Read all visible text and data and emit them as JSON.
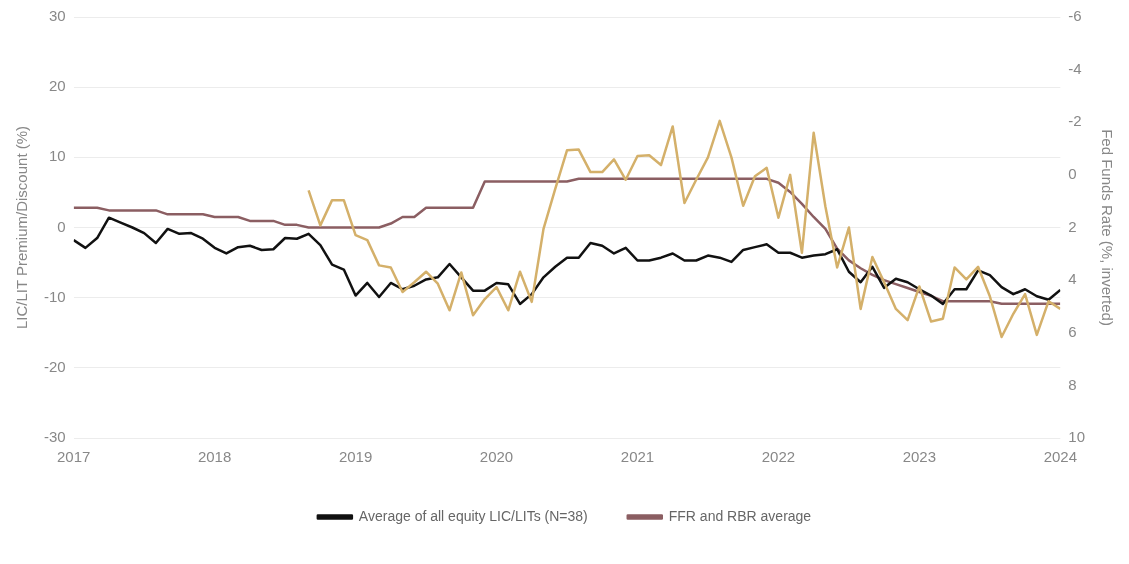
{
  "chart_data": {
    "type": "line",
    "ylabel": "LIC/LIT Premium/Discount (%)",
    "y2label": "Fed Funds Rate (%, inverted)",
    "x": [
      "2017-01",
      "2017-02",
      "2017-03",
      "2017-04",
      "2017-05",
      "2017-06",
      "2017-07",
      "2017-08",
      "2017-09",
      "2017-10",
      "2017-11",
      "2017-12",
      "2018-01",
      "2018-02",
      "2018-03",
      "2018-04",
      "2018-05",
      "2018-06",
      "2018-07",
      "2018-08",
      "2018-09",
      "2018-10",
      "2018-11",
      "2018-12",
      "2019-01",
      "2019-02",
      "2019-03",
      "2019-04",
      "2019-05",
      "2019-06",
      "2019-07",
      "2019-08",
      "2019-09",
      "2019-10",
      "2019-11",
      "2019-12",
      "2020-01",
      "2020-02",
      "2020-03",
      "2020-04",
      "2020-05",
      "2020-06",
      "2020-07",
      "2020-08",
      "2020-09",
      "2020-10",
      "2020-11",
      "2020-12",
      "2021-01",
      "2021-02",
      "2021-03",
      "2021-04",
      "2021-05",
      "2021-06",
      "2021-07",
      "2021-08",
      "2021-09",
      "2021-10",
      "2021-11",
      "2021-12",
      "2022-01",
      "2022-02",
      "2022-03",
      "2022-04",
      "2022-05",
      "2022-06",
      "2022-07",
      "2022-08",
      "2022-09",
      "2022-10",
      "2022-11",
      "2022-12",
      "2023-01",
      "2023-02",
      "2023-03",
      "2023-04",
      "2023-05",
      "2023-06",
      "2023-07",
      "2023-08",
      "2023-09",
      "2023-10",
      "2023-11",
      "2023-12",
      "2024-01"
    ],
    "series": [
      {
        "color": "#d4b06a",
        "values": [
          null,
          null,
          null,
          null,
          null,
          null,
          null,
          null,
          null,
          null,
          null,
          null,
          null,
          null,
          null,
          null,
          null,
          null,
          null,
          null,
          5.3,
          0.3,
          3.9,
          3.9,
          -1.1,
          -1.8,
          -5.4,
          -5.7,
          -9.2,
          -7.8,
          -6.3,
          -8,
          -11.8,
          -6.4,
          -12.5,
          -10.2,
          -8.5,
          -11.8,
          -6.3,
          -10.6,
          -0.2,
          5.5,
          11,
          11.1,
          7.9,
          7.9,
          9.7,
          6.8,
          10.2,
          10.3,
          8.9,
          14.4,
          3.5,
          6.8,
          10,
          15.2,
          10,
          3.1,
          7.3,
          8.5,
          1.4,
          7.5,
          -3.6,
          13.5,
          3,
          -5.7,
          0,
          -11.6,
          -4.2,
          -7.8,
          -11.6,
          -13.2,
          -8.4,
          -13.4,
          -13,
          -5.7,
          -7.4,
          -5.6,
          -9.8,
          -15.6,
          -12.3,
          -9.5,
          -15.3,
          -10.5,
          -11.6
        ]
      },
      {
        "name": "Average of all equity LIC/LITs (N=38)",
        "color": "#111111",
        "values": [
          -1.8,
          -2.9,
          -1.5,
          1.4,
          0.7,
          0,
          -0.8,
          -2.2,
          -0.2,
          -0.9,
          -0.8,
          -1.6,
          -2.9,
          -3.7,
          -2.8,
          -2.6,
          -3.2,
          -3.1,
          -1.5,
          -1.6,
          -0.9,
          -2.5,
          -5.3,
          -6,
          -9.7,
          -7.9,
          -9.9,
          -7.9,
          -8.8,
          -8.3,
          -7.4,
          -7.1,
          -5.2,
          -7.1,
          -9,
          -9,
          -7.9,
          -8.1,
          -10.9,
          -9.5,
          -7.1,
          -5.6,
          -4.3,
          -4.3,
          -2.2,
          -2.6,
          -3.7,
          -2.9,
          -4.7,
          -4.7,
          -4.3,
          -3.7,
          -4.7,
          -4.7,
          -4,
          -4.3,
          -4.9,
          -3.2,
          -2.8,
          -2.4,
          -3.6,
          -3.6,
          -4.3,
          -4,
          -3.8,
          -3.1,
          -6.3,
          -7.8,
          -5.6,
          -8.6,
          -7.3,
          -7.8,
          -8.8,
          -9.7,
          -10.9,
          -8.8,
          -8.8,
          -6.1,
          -6.8,
          -8.5,
          -9.5,
          -8.8,
          -9.8,
          -10.3,
          -8.9
        ]
      },
      {
        "name": "FFR and RBR average",
        "color": "#8b5e62",
        "axis": "y2",
        "values": [
          1.25,
          1.25,
          1.25,
          1.35,
          1.35,
          1.35,
          1.35,
          1.35,
          1.5,
          1.5,
          1.5,
          1.5,
          1.6,
          1.6,
          1.6,
          1.75,
          1.75,
          1.75,
          1.9,
          1.9,
          2,
          2,
          2,
          2,
          2,
          2,
          2,
          1.85,
          1.6,
          1.6,
          1.25,
          1.25,
          1.25,
          1.25,
          1.25,
          0.25,
          0.25,
          0.25,
          0.25,
          0.25,
          0.25,
          0.25,
          0.25,
          0.15,
          0.15,
          0.15,
          0.15,
          0.15,
          0.15,
          0.15,
          0.15,
          0.15,
          0.15,
          0.15,
          0.15,
          0.15,
          0.15,
          0.15,
          0.15,
          0.15,
          0.3,
          0.65,
          1.1,
          1.6,
          2.05,
          2.8,
          3.25,
          3.55,
          3.8,
          4,
          4.15,
          4.3,
          4.45,
          4.6,
          4.8,
          4.8,
          4.8,
          4.8,
          4.8,
          4.9,
          4.9,
          4.9,
          4.9,
          4.9,
          4.9
        ]
      }
    ],
    "xlim": [
      "2017",
      "2024"
    ],
    "xticks": [
      "2017",
      "2018",
      "2019",
      "2020",
      "2021",
      "2022",
      "2023",
      "2024"
    ],
    "ylim": [
      -30,
      30
    ],
    "yticks": [
      -30,
      -20,
      -10,
      0,
      10,
      20,
      30
    ],
    "y2lim": [
      10,
      -6
    ],
    "y2ticks": [
      -6,
      -4,
      -2,
      0,
      2,
      4,
      6,
      8,
      10
    ],
    "grid": "y",
    "legend": "bottom",
    "marker": "none",
    "line_style": "solid"
  }
}
